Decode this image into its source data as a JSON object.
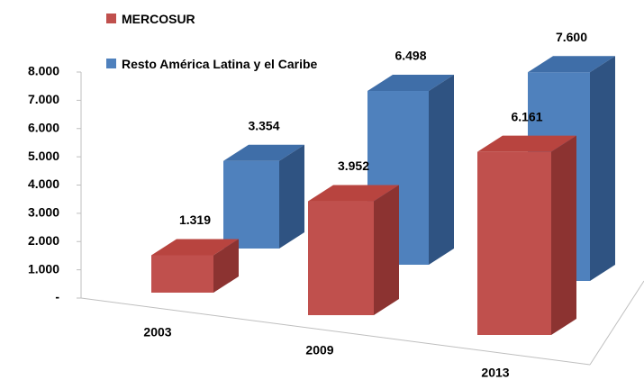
{
  "chart_data": {
    "type": "bar3d",
    "categories": [
      "2003",
      "2009",
      "2013"
    ],
    "series": [
      {
        "name": "MERCOSUR",
        "color": "#c0504d",
        "values": [
          1319,
          3952,
          6161
        ],
        "value_labels": [
          "1.319",
          "3.952",
          "6.161"
        ]
      },
      {
        "name": "Resto América Latina y el Caribe",
        "color": "#4f81bd",
        "values": [
          3354,
          6498,
          7600
        ],
        "value_labels": [
          "3.354",
          "6.498",
          "7.600"
        ]
      }
    ],
    "ylim": [
      0,
      8000
    ],
    "yticks": [
      {
        "value": 0,
        "label": "-"
      },
      {
        "value": 1000,
        "label": "1.000"
      },
      {
        "value": 2000,
        "label": "2.000"
      },
      {
        "value": 3000,
        "label": "3.000"
      },
      {
        "value": 4000,
        "label": "4.000"
      },
      {
        "value": 5000,
        "label": "5.000"
      },
      {
        "value": 6000,
        "label": "6.000"
      },
      {
        "value": 7000,
        "label": "7.000"
      },
      {
        "value": 8000,
        "label": "8.000"
      }
    ]
  }
}
